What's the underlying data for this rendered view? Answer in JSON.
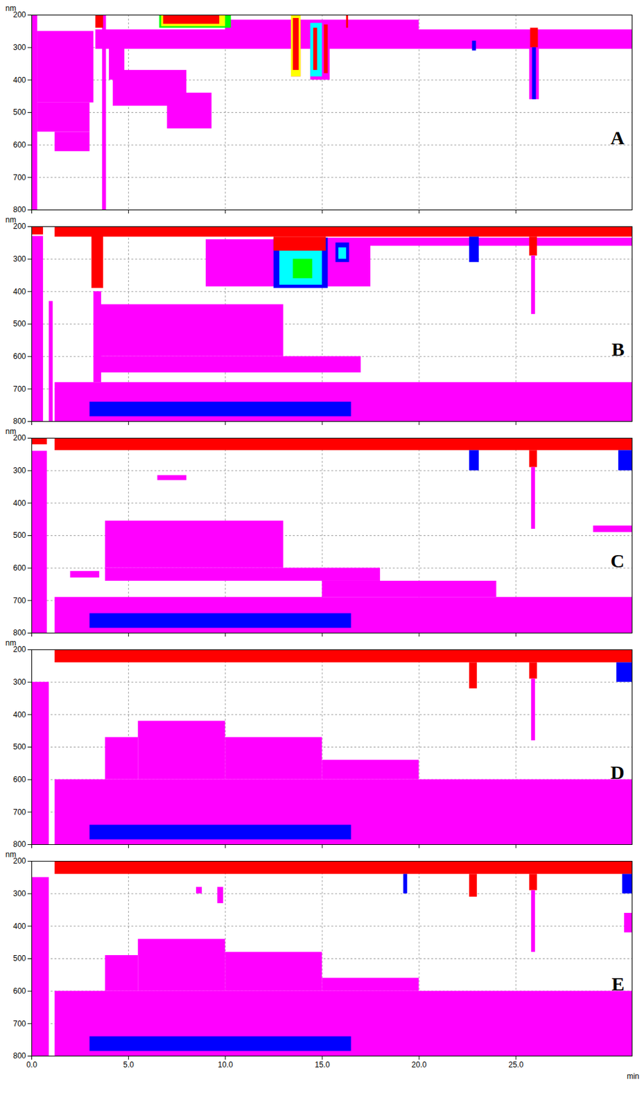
{
  "chart_data": [
    {
      "type": "contour",
      "panel": "A",
      "y_label": "nm",
      "xlim": [
        0,
        31
      ],
      "ylim": [
        200,
        800
      ],
      "xticks": [
        0,
        5,
        10,
        15,
        20,
        25
      ],
      "yticks": [
        200,
        300,
        400,
        500,
        600,
        700,
        800
      ],
      "grid": true,
      "tick_labels": "y",
      "regions": [
        {
          "x": [
            0,
            0.3
          ],
          "y": [
            200,
            800
          ],
          "color": "#ff00ff"
        },
        {
          "x": [
            0.3,
            3.2
          ],
          "y": [
            250,
            470
          ],
          "color": "#ff00ff"
        },
        {
          "x": [
            0.3,
            3.0
          ],
          "y": [
            470,
            560
          ],
          "color": "#ff00ff"
        },
        {
          "x": [
            1.2,
            3.0
          ],
          "y": [
            560,
            620
          ],
          "color": "#ff00ff"
        },
        {
          "x": [
            3.65,
            3.85
          ],
          "y": [
            200,
            800
          ],
          "color": "#ff00ff"
        },
        {
          "x": [
            4.0,
            4.8
          ],
          "y": [
            250,
            400
          ],
          "color": "#ff00ff"
        },
        {
          "x": [
            4.2,
            8.0
          ],
          "y": [
            370,
            480
          ],
          "color": "#ff00ff"
        },
        {
          "x": [
            7.0,
            9.3
          ],
          "y": [
            440,
            550
          ],
          "color": "#ff00ff"
        },
        {
          "x": [
            3.3,
            31
          ],
          "y": [
            245,
            305
          ],
          "color": "#ff00ff"
        },
        {
          "x": [
            10,
            20
          ],
          "y": [
            215,
            250
          ],
          "color": "#ff00ff"
        },
        {
          "x": [
            13.4,
            13.9
          ],
          "y": [
            300,
            390
          ],
          "color": "#ff00ff"
        },
        {
          "x": [
            14.4,
            15.4
          ],
          "y": [
            300,
            400
          ],
          "color": "#ff00ff"
        },
        {
          "x": [
            25.7,
            26.2
          ],
          "y": [
            290,
            460
          ],
          "color": "#ff00ff"
        },
        {
          "x": [
            3.3,
            3.7
          ],
          "y": [
            200,
            240
          ],
          "color": "#ff0000"
        },
        {
          "x": [
            6.6,
            10.3
          ],
          "y": [
            200,
            240
          ],
          "color": "#00ff00"
        },
        {
          "x": [
            6.7,
            10.0
          ],
          "y": [
            200,
            235
          ],
          "color": "#ffff00"
        },
        {
          "x": [
            6.8,
            9.7
          ],
          "y": [
            200,
            228
          ],
          "color": "#ff0000"
        },
        {
          "x": [
            13.4,
            13.9
          ],
          "y": [
            200,
            390
          ],
          "color": "#ffff00"
        },
        {
          "x": [
            13.5,
            13.8
          ],
          "y": [
            210,
            370
          ],
          "color": "#ff0000"
        },
        {
          "x": [
            14.4,
            15.0
          ],
          "y": [
            225,
            390
          ],
          "color": "#00ffff"
        },
        {
          "x": [
            14.55,
            14.75
          ],
          "y": [
            240,
            370
          ],
          "color": "#ff0000"
        },
        {
          "x": [
            15.1,
            15.3
          ],
          "y": [
            230,
            380
          ],
          "color": "#ff0000"
        },
        {
          "x": [
            16.25,
            16.35
          ],
          "y": [
            200,
            240
          ],
          "color": "#ff0000"
        },
        {
          "x": [
            22.75,
            22.95
          ],
          "y": [
            280,
            310
          ],
          "color": "#0000ff"
        },
        {
          "x": [
            25.75,
            26.15
          ],
          "y": [
            240,
            300
          ],
          "color": "#ff0000"
        },
        {
          "x": [
            25.85,
            26.05
          ],
          "y": [
            300,
            460
          ],
          "color": "#0000ff"
        }
      ]
    },
    {
      "type": "contour",
      "panel": "B",
      "y_label": "nm",
      "xlim": [
        0,
        31
      ],
      "ylim": [
        200,
        800
      ],
      "xticks": [
        0,
        5,
        10,
        15,
        20,
        25
      ],
      "yticks": [
        200,
        300,
        400,
        500,
        600,
        700,
        800
      ],
      "grid": true,
      "tick_labels": "y",
      "regions": [
        {
          "x": [
            0,
            0.6
          ],
          "y": [
            230,
            800
          ],
          "color": "#ff00ff"
        },
        {
          "x": [
            0.9,
            1.1
          ],
          "y": [
            430,
            800
          ],
          "color": "#ff00ff"
        },
        {
          "x": [
            1.2,
            31
          ],
          "y": [
            680,
            800
          ],
          "color": "#ff00ff"
        },
        {
          "x": [
            3.5,
            13
          ],
          "y": [
            440,
            600
          ],
          "color": "#ff00ff"
        },
        {
          "x": [
            3.5,
            17
          ],
          "y": [
            600,
            650
          ],
          "color": "#ff00ff"
        },
        {
          "x": [
            9,
            17.5
          ],
          "y": [
            240,
            385
          ],
          "color": "#ff00ff"
        },
        {
          "x": [
            15,
            31
          ],
          "y": [
            235,
            260
          ],
          "color": "#ff00ff"
        },
        {
          "x": [
            3.2,
            3.6
          ],
          "y": [
            400,
            680
          ],
          "color": "#ff00ff"
        },
        {
          "x": [
            1.2,
            31
          ],
          "y": [
            200,
            232
          ],
          "color": "#ff0000"
        },
        {
          "x": [
            0,
            0.6
          ],
          "y": [
            200,
            225
          ],
          "color": "#ff0000"
        },
        {
          "x": [
            3.1,
            3.7
          ],
          "y": [
            230,
            390
          ],
          "color": "#ff0000"
        },
        {
          "x": [
            12.5,
            15.3
          ],
          "y": [
            235,
            390
          ],
          "color": "#0000ff"
        },
        {
          "x": [
            12.8,
            15.0
          ],
          "y": [
            250,
            380
          ],
          "color": "#00ffff"
        },
        {
          "x": [
            13.5,
            14.5
          ],
          "y": [
            300,
            360
          ],
          "color": "#00ff00"
        },
        {
          "x": [
            12.5,
            15.2
          ],
          "y": [
            232,
            275
          ],
          "color": "#ff0000"
        },
        {
          "x": [
            15.7,
            16.4
          ],
          "y": [
            250,
            310
          ],
          "color": "#0000ff"
        },
        {
          "x": [
            15.85,
            16.25
          ],
          "y": [
            265,
            300
          ],
          "color": "#00ffff"
        },
        {
          "x": [
            22.6,
            23.1
          ],
          "y": [
            232,
            310
          ],
          "color": "#0000ff"
        },
        {
          "x": [
            25.7,
            26.1
          ],
          "y": [
            232,
            290
          ],
          "color": "#ff0000"
        },
        {
          "x": [
            25.8,
            26.0
          ],
          "y": [
            290,
            470
          ],
          "color": "#ff00ff"
        },
        {
          "x": [
            3.0,
            16.5
          ],
          "y": [
            740,
            785
          ],
          "color": "#0000ff"
        }
      ]
    },
    {
      "type": "contour",
      "panel": "C",
      "y_label": "nm",
      "xlim": [
        0,
        31
      ],
      "ylim": [
        200,
        800
      ],
      "xticks": [
        0,
        5,
        10,
        15,
        20,
        25
      ],
      "yticks": [
        200,
        300,
        400,
        500,
        600,
        700,
        800
      ],
      "grid": true,
      "tick_labels": "y",
      "regions": [
        {
          "x": [
            0,
            0.8
          ],
          "y": [
            240,
            800
          ],
          "color": "#ff00ff"
        },
        {
          "x": [
            1.2,
            31
          ],
          "y": [
            690,
            800
          ],
          "color": "#ff00ff"
        },
        {
          "x": [
            3.8,
            13
          ],
          "y": [
            455,
            600
          ],
          "color": "#ff00ff"
        },
        {
          "x": [
            3.8,
            18
          ],
          "y": [
            600,
            640
          ],
          "color": "#ff00ff"
        },
        {
          "x": [
            15,
            24
          ],
          "y": [
            640,
            690
          ],
          "color": "#ff00ff"
        },
        {
          "x": [
            6.5,
            8.0
          ],
          "y": [
            315,
            330
          ],
          "color": "#ff00ff"
        },
        {
          "x": [
            29,
            31
          ],
          "y": [
            470,
            490
          ],
          "color": "#ff00ff"
        },
        {
          "x": [
            2,
            3.5
          ],
          "y": [
            610,
            630
          ],
          "color": "#ff00ff"
        },
        {
          "x": [
            1.2,
            31
          ],
          "y": [
            200,
            238
          ],
          "color": "#ff0000"
        },
        {
          "x": [
            0,
            0.8
          ],
          "y": [
            200,
            220
          ],
          "color": "#ff0000"
        },
        {
          "x": [
            22.6,
            23.1
          ],
          "y": [
            238,
            300
          ],
          "color": "#0000ff"
        },
        {
          "x": [
            25.7,
            26.1
          ],
          "y": [
            238,
            290
          ],
          "color": "#ff0000"
        },
        {
          "x": [
            25.8,
            26.0
          ],
          "y": [
            290,
            480
          ],
          "color": "#ff00ff"
        },
        {
          "x": [
            30.3,
            31
          ],
          "y": [
            238,
            300
          ],
          "color": "#0000ff"
        },
        {
          "x": [
            3.0,
            16.5
          ],
          "y": [
            740,
            785
          ],
          "color": "#0000ff"
        }
      ]
    },
    {
      "type": "contour",
      "panel": "D",
      "y_label": "nm",
      "xlim": [
        0,
        31
      ],
      "ylim": [
        200,
        800
      ],
      "xticks": [
        0,
        5,
        10,
        15,
        20,
        25
      ],
      "yticks": [
        200,
        300,
        400,
        500,
        600,
        700,
        800
      ],
      "grid": true,
      "tick_labels": "y",
      "regions": [
        {
          "x": [
            0,
            0.9
          ],
          "y": [
            300,
            800
          ],
          "color": "#ff00ff"
        },
        {
          "x": [
            1.2,
            31
          ],
          "y": [
            600,
            800
          ],
          "color": "#ff00ff"
        },
        {
          "x": [
            3.8,
            5.5
          ],
          "y": [
            470,
            600
          ],
          "color": "#ff00ff"
        },
        {
          "x": [
            5.5,
            10
          ],
          "y": [
            420,
            600
          ],
          "color": "#ff00ff"
        },
        {
          "x": [
            10,
            15
          ],
          "y": [
            470,
            600
          ],
          "color": "#ff00ff"
        },
        {
          "x": [
            15,
            20
          ],
          "y": [
            540,
            600
          ],
          "color": "#ff00ff"
        },
        {
          "x": [
            1.2,
            31
          ],
          "y": [
            200,
            240
          ],
          "color": "#ff0000"
        },
        {
          "x": [
            22.6,
            23.0
          ],
          "y": [
            240,
            320
          ],
          "color": "#ff0000"
        },
        {
          "x": [
            25.7,
            26.1
          ],
          "y": [
            240,
            290
          ],
          "color": "#ff0000"
        },
        {
          "x": [
            25.8,
            26.0
          ],
          "y": [
            290,
            480
          ],
          "color": "#ff00ff"
        },
        {
          "x": [
            30.2,
            31
          ],
          "y": [
            240,
            300
          ],
          "color": "#0000ff"
        },
        {
          "x": [
            3.0,
            16.5
          ],
          "y": [
            740,
            785
          ],
          "color": "#0000ff"
        }
      ]
    },
    {
      "type": "contour",
      "panel": "E",
      "y_label": "nm",
      "x_label": "min",
      "xlim": [
        0,
        31
      ],
      "ylim": [
        200,
        800
      ],
      "xticks": [
        {
          "value": 0,
          "label": "0.0"
        },
        {
          "value": 5,
          "label": "5.0"
        },
        {
          "value": 10,
          "label": "10.0"
        },
        {
          "value": 15,
          "label": "15.0"
        },
        {
          "value": 20,
          "label": "20.0"
        },
        {
          "value": 25,
          "label": "25.0"
        }
      ],
      "yticks": [
        200,
        300,
        400,
        500,
        600,
        700,
        800
      ],
      "grid": true,
      "regions": [
        {
          "x": [
            0,
            0.9
          ],
          "y": [
            250,
            800
          ],
          "color": "#ff00ff"
        },
        {
          "x": [
            1.2,
            31
          ],
          "y": [
            600,
            800
          ],
          "color": "#ff00ff"
        },
        {
          "x": [
            3.8,
            5.5
          ],
          "y": [
            490,
            600
          ],
          "color": "#ff00ff"
        },
        {
          "x": [
            5.5,
            10
          ],
          "y": [
            440,
            600
          ],
          "color": "#ff00ff"
        },
        {
          "x": [
            10,
            15
          ],
          "y": [
            480,
            600
          ],
          "color": "#ff00ff"
        },
        {
          "x": [
            15,
            20
          ],
          "y": [
            560,
            600
          ],
          "color": "#ff00ff"
        },
        {
          "x": [
            8.5,
            8.8
          ],
          "y": [
            280,
            300
          ],
          "color": "#ff00ff"
        },
        {
          "x": [
            9.6,
            9.9
          ],
          "y": [
            280,
            330
          ],
          "color": "#ff00ff"
        },
        {
          "x": [
            30.6,
            31
          ],
          "y": [
            360,
            420
          ],
          "color": "#ff00ff"
        },
        {
          "x": [
            1.2,
            31
          ],
          "y": [
            200,
            240
          ],
          "color": "#ff0000"
        },
        {
          "x": [
            19.2,
            19.4
          ],
          "y": [
            240,
            300
          ],
          "color": "#0000ff"
        },
        {
          "x": [
            22.6,
            23.0
          ],
          "y": [
            240,
            310
          ],
          "color": "#ff0000"
        },
        {
          "x": [
            25.7,
            26.1
          ],
          "y": [
            240,
            290
          ],
          "color": "#ff0000"
        },
        {
          "x": [
            25.8,
            26.0
          ],
          "y": [
            290,
            480
          ],
          "color": "#ff00ff"
        },
        {
          "x": [
            30.5,
            31
          ],
          "y": [
            240,
            300
          ],
          "color": "#0000ff"
        },
        {
          "x": [
            3.0,
            16.5
          ],
          "y": [
            740,
            785
          ],
          "color": "#0000ff"
        }
      ]
    }
  ]
}
